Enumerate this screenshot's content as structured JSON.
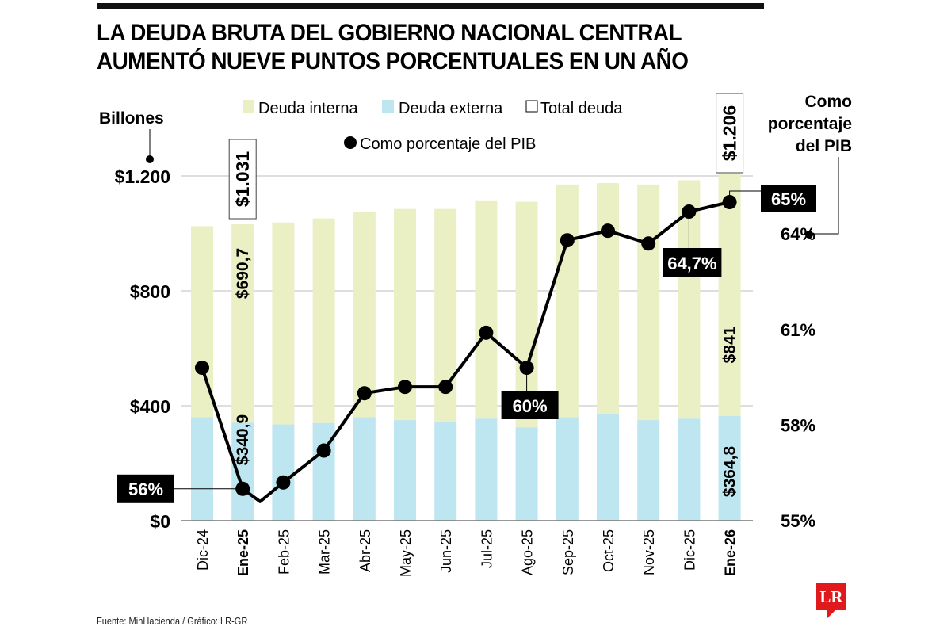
{
  "title_lines": [
    "LA DEUDA BRUTA DEL GOBIERNO NACIONAL CENTRAL",
    "AUMENTÓ NUEVE PUNTOS PORCENTUALES EN UN AÑO"
  ],
  "footer": "Fuente: MinHacienda / Gráfico: LR-GR",
  "logo": "LR",
  "colors": {
    "interna": "#ebefc4",
    "externa": "#bde6f0",
    "line": "#000000",
    "grid": "#bdbdbd",
    "logo": "#e0191d"
  },
  "chart_data": {
    "type": "bar",
    "title": "LA DEUDA BRUTA DEL GOBIERNO NACIONAL CENTRAL AUMENTÓ NUEVE PUNTOS PORCENTUALES EN UN AÑO",
    "ylabel": "Billones",
    "y2label": "Como porcentaje del PIB",
    "ylim": [
      0,
      1200
    ],
    "y2lim": [
      55,
      65.5
    ],
    "yticks": [
      {
        "v": 0,
        "label": "$0"
      },
      {
        "v": 400,
        "label": "$400"
      },
      {
        "v": 800,
        "label": "$800"
      },
      {
        "v": 1200,
        "label": "$1.200"
      }
    ],
    "y2ticks": [
      {
        "v": 55,
        "label": "55%"
      },
      {
        "v": 58,
        "label": "58%"
      },
      {
        "v": 61,
        "label": "61%"
      },
      {
        "v": 64,
        "label": "64%"
      }
    ],
    "categories": [
      "Dic-24",
      "Ene-25",
      "Feb-25",
      "Mar-25",
      "Abr-25",
      "May-25",
      "Jun-25",
      "Jul-25",
      "Ago-25",
      "Sep-25",
      "Oct-25",
      "Nov-25",
      "Dic-25",
      "Ene-26"
    ],
    "bold_categories": [
      "Ene-25",
      "Ene-26"
    ],
    "legend": [
      {
        "name": "Deuda interna",
        "type": "square",
        "color": "#ebefc4"
      },
      {
        "name": "Deuda externa",
        "type": "square",
        "color": "#bde6f0"
      },
      {
        "name": "Total deuda",
        "type": "outline"
      },
      {
        "name": "Como porcentaje del PIB",
        "type": "dot"
      }
    ],
    "series": [
      {
        "name": "Deuda externa",
        "values": [
          360,
          340.9,
          335,
          340,
          360,
          350,
          345,
          355,
          325,
          360,
          370,
          350,
          355,
          364.8
        ]
      },
      {
        "name": "Deuda interna",
        "values": [
          665,
          690.7,
          703,
          712,
          715,
          735,
          740,
          760,
          785,
          810,
          805,
          820,
          830,
          841
        ]
      },
      {
        "name": "Total deuda",
        "values": [
          1025,
          1031,
          1038,
          1052,
          1075,
          1085,
          1085,
          1115,
          1110,
          1170,
          1175,
          1170,
          1185,
          1206
        ]
      },
      {
        "name": "Como porcentaje del PIB",
        "axis": "right",
        "values": [
          59.8,
          56.0,
          56.2,
          57.2,
          59.0,
          59.2,
          59.2,
          60.9,
          59.8,
          63.8,
          64.1,
          63.7,
          64.7,
          65.0
        ]
      }
    ],
    "annotations": [
      {
        "text": "$1.031",
        "category": "Ene-25",
        "kind": "total-box"
      },
      {
        "text": "$1.206",
        "category": "Ene-26",
        "kind": "total-box"
      },
      {
        "text": "$690,7",
        "category": "Ene-25",
        "kind": "interna"
      },
      {
        "text": "$340,9",
        "category": "Ene-25",
        "kind": "externa"
      },
      {
        "text": "$841",
        "category": "Ene-26",
        "kind": "interna"
      },
      {
        "text": "$364,8",
        "category": "Ene-26",
        "kind": "externa"
      },
      {
        "text": "56%",
        "category": "Ene-25",
        "kind": "pct-left"
      },
      {
        "text": "60%",
        "category": "Ago-25",
        "kind": "pct-below"
      },
      {
        "text": "64,7%",
        "category": "Dic-25",
        "kind": "pct-below"
      },
      {
        "text": "65%",
        "category": "Ene-26",
        "kind": "pct-right"
      }
    ],
    "grid": true
  }
}
